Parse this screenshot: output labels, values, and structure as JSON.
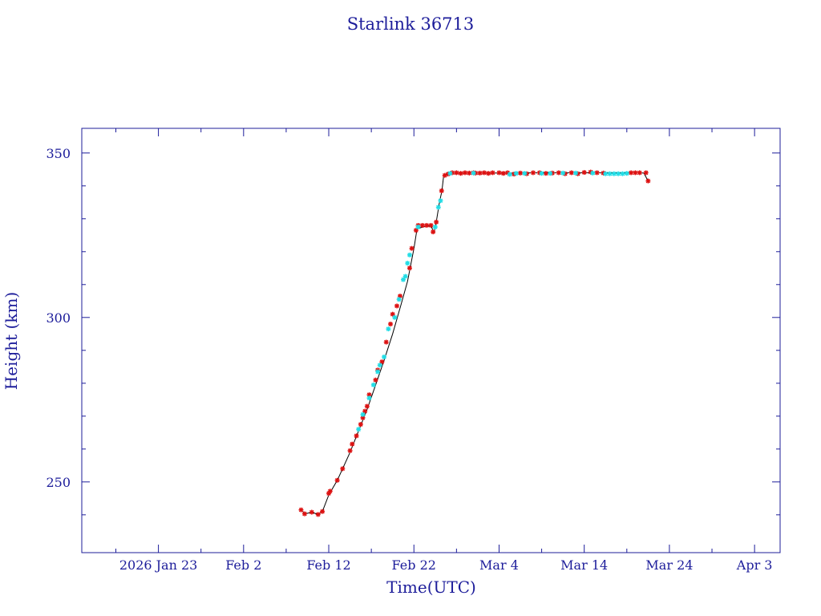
{
  "chart_data": {
    "type": "scatter",
    "title": "Starlink 36713",
    "xlabel": "Time(UTC)",
    "ylabel": "Height (km)",
    "x_axis": {
      "type": "date",
      "range": [
        "2026-01-14",
        "2026-04-06"
      ],
      "major_ticks": [
        {
          "date": "2026-01-23",
          "label": "2026 Jan 23"
        },
        {
          "date": "2026-02-02",
          "label": "Feb  2"
        },
        {
          "date": "2026-02-12",
          "label": "Feb 12"
        },
        {
          "date": "2026-02-22",
          "label": "Feb 22"
        },
        {
          "date": "2026-03-04",
          "label": "Mar  4"
        },
        {
          "date": "2026-03-14",
          "label": "Mar 14"
        },
        {
          "date": "2026-03-24",
          "label": "Mar 24"
        },
        {
          "date": "2026-04-03",
          "label": "Apr  3"
        }
      ],
      "minor_ticks": [
        "2026-01-18",
        "2026-01-28",
        "2026-02-07",
        "2026-02-17",
        "2026-02-27",
        "2026-03-09",
        "2026-03-19",
        "2026-03-29"
      ]
    },
    "y_axis": {
      "range": [
        228.5,
        357.5
      ],
      "major_ticks": [
        250,
        300,
        350
      ],
      "minor_ticks": [
        240,
        260,
        270,
        280,
        290,
        310,
        320,
        330,
        340
      ]
    },
    "grid": false,
    "colors": {
      "axes": "#1c1c9a",
      "line": "#000000",
      "marker_red": "#dd1111",
      "marker_cyan": "#22dde6"
    },
    "line_points": [
      [
        "2026-02-08T18:00",
        241.5
      ],
      [
        "2026-02-09T06:00",
        240.3
      ],
      [
        "2026-02-10T00:00",
        240.8
      ],
      [
        "2026-02-10T18:00",
        240.1
      ],
      [
        "2026-02-11T06:00",
        241.0
      ],
      [
        "2026-02-12T00:00",
        246.0
      ],
      [
        "2026-02-13T00:00",
        250.5
      ],
      [
        "2026-02-13T15:00",
        254.0
      ],
      [
        "2026-02-14T12:00",
        259.0
      ],
      [
        "2026-02-15T12:00",
        265.5
      ],
      [
        "2026-02-16T12:00",
        272.0
      ],
      [
        "2026-02-17T12:00",
        279.5
      ],
      [
        "2026-02-18T12:00",
        287.0
      ],
      [
        "2026-02-19T12:00",
        295.0
      ],
      [
        "2026-02-20T12:00",
        304.0
      ],
      [
        "2026-02-21T06:00",
        311.0
      ],
      [
        "2026-02-22T00:00",
        321.0
      ],
      [
        "2026-02-22T09:00",
        327.0
      ],
      [
        "2026-02-23T12:00",
        327.8
      ],
      [
        "2026-02-24T00:00",
        327.8
      ],
      [
        "2026-02-24T09:00",
        325.8
      ],
      [
        "2026-02-24T15:00",
        329.0
      ],
      [
        "2026-02-25T00:00",
        335.0
      ],
      [
        "2026-02-25T07:00",
        338.5
      ],
      [
        "2026-02-25T12:00",
        343.2
      ],
      [
        "2026-02-26T12:00",
        343.9
      ],
      [
        "2026-03-04T00:00",
        343.9
      ],
      [
        "2026-03-10T00:00",
        344.0
      ],
      [
        "2026-03-14T00:00",
        344.0
      ],
      [
        "2026-03-18T00:00",
        344.0
      ],
      [
        "2026-03-20T00:00",
        344.0
      ],
      [
        "2026-03-21T00:00",
        343.9
      ],
      [
        "2026-03-21T12:00",
        341.5
      ]
    ],
    "series": [
      {
        "color_key": "marker_red",
        "points": [
          [
            "2026-02-08T18:00",
            241.5
          ],
          [
            "2026-02-09T04:00",
            240.3
          ],
          [
            "2026-02-10T00:00",
            240.8
          ],
          [
            "2026-02-10T18:00",
            240.1
          ],
          [
            "2026-02-11T06:00",
            241.0
          ],
          [
            "2026-02-12T00:00",
            246.5
          ],
          [
            "2026-02-12T04:00",
            247.2
          ],
          [
            "2026-02-13T00:00",
            250.5
          ],
          [
            "2026-02-13T15:00",
            254.0
          ],
          [
            "2026-02-14T12:00",
            259.5
          ],
          [
            "2026-02-14T18:00",
            261.5
          ],
          [
            "2026-02-15T06:00",
            264.0
          ],
          [
            "2026-02-15T18:00",
            267.5
          ],
          [
            "2026-02-16T00:00",
            269.5
          ],
          [
            "2026-02-16T06:00",
            271.5
          ],
          [
            "2026-02-16T12:00",
            273.0
          ],
          [
            "2026-02-16T18:00",
            276.5
          ],
          [
            "2026-02-17T12:00",
            281.0
          ],
          [
            "2026-02-17T18:00",
            284.0
          ],
          [
            "2026-02-18T06:00",
            286.5
          ],
          [
            "2026-02-18T18:00",
            292.5
          ],
          [
            "2026-02-19T06:00",
            298.0
          ],
          [
            "2026-02-19T12:00",
            301.0
          ],
          [
            "2026-02-20T00:00",
            303.5
          ],
          [
            "2026-02-20T09:00",
            306.5
          ],
          [
            "2026-02-21T12:00",
            315.0
          ],
          [
            "2026-02-21T18:00",
            321.0
          ],
          [
            "2026-02-22T06:00",
            326.5
          ],
          [
            "2026-02-22T12:00",
            328.0
          ],
          [
            "2026-02-23T00:00",
            328.0
          ],
          [
            "2026-02-23T12:00",
            328.0
          ],
          [
            "2026-02-24T00:00",
            328.0
          ],
          [
            "2026-02-24T06:00",
            326.0
          ],
          [
            "2026-02-24T15:00",
            329.0
          ],
          [
            "2026-02-25T06:00",
            338.5
          ],
          [
            "2026-02-25T15:00",
            343.2
          ],
          [
            "2026-02-26T00:00",
            343.6
          ],
          [
            "2026-02-26T12:00",
            344.0
          ],
          [
            "2026-02-27T00:00",
            344.0
          ],
          [
            "2026-02-27T12:00",
            343.8
          ],
          [
            "2026-02-28T00:00",
            344.0
          ],
          [
            "2026-02-28T12:00",
            343.9
          ],
          [
            "2026-02-29T00:00",
            344.0
          ],
          [
            "2026-03-01T06:00",
            343.9
          ],
          [
            "2026-03-01T18:00",
            343.9
          ],
          [
            "2026-03-02T06:00",
            344.0
          ],
          [
            "2026-03-02T18:00",
            343.8
          ],
          [
            "2026-03-03T06:00",
            344.0
          ],
          [
            "2026-03-04T00:00",
            344.0
          ],
          [
            "2026-03-04T12:00",
            343.8
          ],
          [
            "2026-03-05T00:00",
            344.0
          ],
          [
            "2026-03-05T18:00",
            343.6
          ],
          [
            "2026-03-06T12:00",
            343.9
          ],
          [
            "2026-03-07T06:00",
            343.7
          ],
          [
            "2026-03-08T00:00",
            344.0
          ],
          [
            "2026-03-08T18:00",
            344.0
          ],
          [
            "2026-03-09T12:00",
            343.8
          ],
          [
            "2026-03-10T06:00",
            343.9
          ],
          [
            "2026-03-11T00:00",
            344.0
          ],
          [
            "2026-03-11T18:00",
            343.7
          ],
          [
            "2026-03-12T12:00",
            344.0
          ],
          [
            "2026-03-13T06:00",
            343.7
          ],
          [
            "2026-03-14T00:00",
            344.1
          ],
          [
            "2026-03-14T18:00",
            344.2
          ],
          [
            "2026-03-15T12:00",
            344.0
          ],
          [
            "2026-03-16T06:00",
            343.9
          ],
          [
            "2026-03-19T12:00",
            344.0
          ],
          [
            "2026-03-20T00:00",
            344.0
          ],
          [
            "2026-03-20T12:00",
            344.0
          ],
          [
            "2026-03-21T06:00",
            344.0
          ],
          [
            "2026-03-21T12:00",
            341.5
          ]
        ]
      },
      {
        "color_key": "marker_cyan",
        "points": [
          [
            "2026-02-15T12:00",
            266.0
          ],
          [
            "2026-02-16T00:00",
            270.5
          ],
          [
            "2026-02-16T18:00",
            275.5
          ],
          [
            "2026-02-17T06:00",
            279.5
          ],
          [
            "2026-02-17T18:00",
            283.5
          ],
          [
            "2026-02-18T00:00",
            285.5
          ],
          [
            "2026-02-18T12:00",
            288.0
          ],
          [
            "2026-02-19T00:00",
            296.5
          ],
          [
            "2026-02-19T18:00",
            300.0
          ],
          [
            "2026-02-20T06:00",
            305.5
          ],
          [
            "2026-02-20T18:00",
            311.5
          ],
          [
            "2026-02-21T00:00",
            312.5
          ],
          [
            "2026-02-21T06:00",
            316.5
          ],
          [
            "2026-02-21T12:00",
            319.0
          ],
          [
            "2026-02-22T12:00",
            327.5
          ],
          [
            "2026-02-24T12:00",
            327.5
          ],
          [
            "2026-02-24T21:00",
            333.5
          ],
          [
            "2026-02-25T03:00",
            335.5
          ],
          [
            "2026-02-26T06:00",
            343.8
          ],
          [
            "2026-03-01T00:00",
            343.9
          ],
          [
            "2026-03-05T06:00",
            343.5
          ],
          [
            "2026-03-06T00:00",
            343.8
          ],
          [
            "2026-03-07T00:00",
            343.8
          ],
          [
            "2026-03-09T00:00",
            343.8
          ],
          [
            "2026-03-10T00:00",
            343.8
          ],
          [
            "2026-03-11T12:00",
            343.9
          ],
          [
            "2026-03-13T00:00",
            343.9
          ],
          [
            "2026-03-15T00:00",
            343.9
          ],
          [
            "2026-03-16T12:00",
            343.7
          ],
          [
            "2026-03-17T00:00",
            343.7
          ],
          [
            "2026-03-17T12:00",
            343.7
          ],
          [
            "2026-03-18T00:00",
            343.7
          ],
          [
            "2026-03-18T12:00",
            343.7
          ],
          [
            "2026-03-19T00:00",
            343.8
          ]
        ]
      }
    ]
  }
}
